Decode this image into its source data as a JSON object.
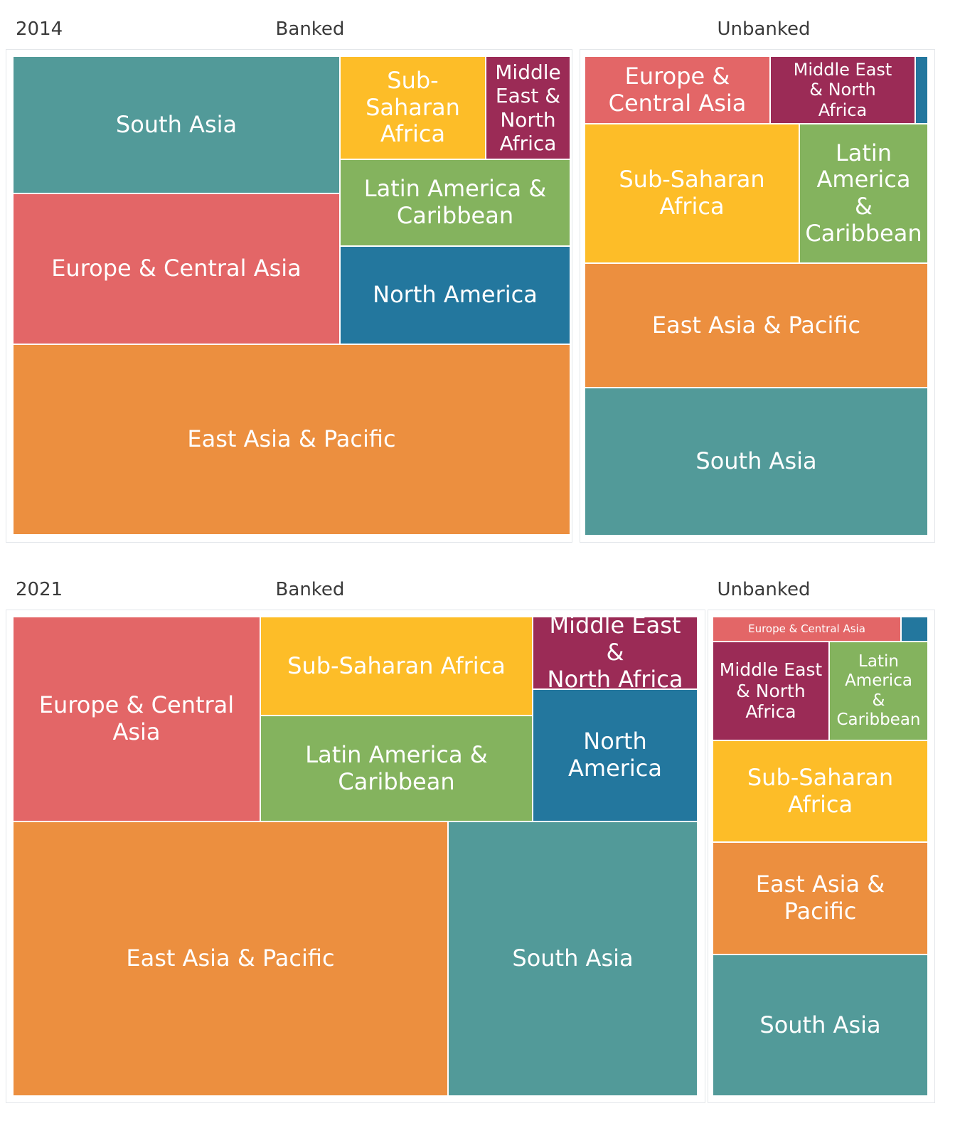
{
  "colors": {
    "East Asia & Pacific": "#ec8f3f",
    "Europe & Central Asia": "#e36667",
    "Latin America & Caribbean": "#84b35e",
    "Middle East & North Africa": "#9b2b56",
    "North America": "#23779e",
    "South Asia": "#529a99",
    "Sub-Saharan Africa": "#fdbd28"
  },
  "panels": [
    {
      "year": "2014",
      "banked_title": "Banked",
      "unbanked_title": "Unbanked"
    },
    {
      "year": "2021",
      "banked_title": "Banked",
      "unbanked_title": "Unbanked"
    }
  ],
  "chart_data": [
    {
      "type": "treemap",
      "title": "2014 Banked",
      "items": [
        {
          "name": "East Asia & Pacific",
          "value": 34.2
        },
        {
          "name": "South Asia",
          "value": 14.2
        },
        {
          "name": "Europe & Central Asia",
          "value": 15.6
        },
        {
          "name": "North America",
          "value": 7.1
        },
        {
          "name": "Latin America & Caribbean",
          "value": 8.0
        },
        {
          "name": "Sub-Saharan Africa",
          "value": 5.6
        },
        {
          "name": "Middle East & North Africa",
          "value": 3.3
        }
      ],
      "labels": [
        "South Asia",
        "Europe & Central Asia",
        "East Asia & Pacific",
        "Sub-Saharan Africa",
        "Middle East & North Africa",
        "Latin America & Caribbean",
        "North America"
      ]
    },
    {
      "type": "treemap",
      "title": "2014 Unbanked",
      "items": [
        {
          "name": "South Asia",
          "value": 31.0
        },
        {
          "name": "East Asia & Pacific",
          "value": 26.0
        },
        {
          "name": "Sub-Saharan Africa",
          "value": 18.2
        },
        {
          "name": "Latin America & Caribbean",
          "value": 10.1
        },
        {
          "name": "Europe & Central Asia",
          "value": 7.7
        },
        {
          "name": "Middle East & North Africa",
          "value": 6.2
        },
        {
          "name": "North America",
          "value": 0.5
        }
      ],
      "labels": [
        "Europe & Central Asia",
        "Middle East & North Africa",
        "Sub-Saharan Africa",
        "Latin America & Caribbean",
        "East Asia & Pacific",
        "South Asia"
      ]
    },
    {
      "type": "treemap",
      "title": "2021 Banked",
      "items": [
        {
          "name": "East Asia & Pacific",
          "value": 31.0
        },
        {
          "name": "South Asia",
          "value": 17.8
        },
        {
          "name": "Europe & Central Asia",
          "value": 13.1
        },
        {
          "name": "Sub-Saharan Africa",
          "value": 8.3
        },
        {
          "name": "Latin America & Caribbean",
          "value": 8.9
        },
        {
          "name": "North America",
          "value": 6.4
        },
        {
          "name": "Middle East & North Africa",
          "value": 3.0
        }
      ],
      "labels": [
        "Europe & Central Asia",
        "Sub-Saharan Africa",
        "Middle East & North Africa",
        "Latin America & Caribbean",
        "North America",
        "East Asia & Pacific",
        "South Asia"
      ]
    },
    {
      "type": "treemap",
      "title": "2021 Unbanked",
      "items": [
        {
          "name": "South Asia",
          "value": 29.0
        },
        {
          "name": "East Asia & Pacific",
          "value": 23.0
        },
        {
          "name": "Sub-Saharan Africa",
          "value": 21.0
        },
        {
          "name": "Middle East & North Africa",
          "value": 11.0
        },
        {
          "name": "Latin America & Caribbean",
          "value": 10.0
        },
        {
          "name": "Europe & Central Asia",
          "value": 4.0
        },
        {
          "name": "North America",
          "value": 1.0
        }
      ],
      "labels": [
        "Europe & Central Asia",
        "Middle East & North Africa",
        "Latin America & Caribbean",
        "Sub-Saharan Africa",
        "East Asia & Pacific",
        "South Asia"
      ]
    }
  ]
}
